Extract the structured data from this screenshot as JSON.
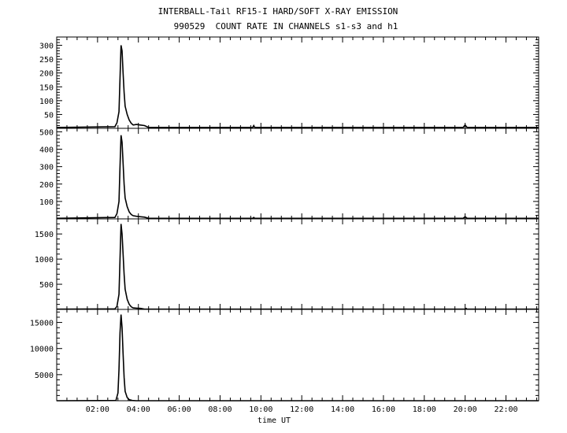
{
  "header": {
    "title": "INTERBALL-Tail RF15-I HARD/SOFT X-RAY EMISSION",
    "subtitle": "990529  COUNT RATE IN CHANNELS s1-s3 and h1"
  },
  "chart_data": {
    "type": "line",
    "xlabel": "time UT",
    "x_range_hours": [
      0,
      23.6
    ],
    "x_tick_labels": [
      "02:00",
      "04:00",
      "06:00",
      "08:00",
      "10:00",
      "12:00",
      "14:00",
      "16:00",
      "18:00",
      "20:00",
      "22:00"
    ],
    "x_tick_hours": [
      2,
      4,
      6,
      8,
      10,
      12,
      14,
      16,
      18,
      20,
      22
    ],
    "grid": false,
    "panels": [
      {
        "channel": "s1",
        "ylim": [
          0,
          330
        ],
        "y_ticks": [
          50,
          100,
          150,
          200,
          250,
          300
        ],
        "y_tick_labels": [
          "50",
          "100",
          "150",
          "200",
          "250",
          "300"
        ],
        "x": [
          0,
          2.85,
          2.95,
          3.05,
          3.1,
          3.15,
          3.2,
          3.25,
          3.3,
          3.35,
          3.45,
          3.55,
          3.65,
          3.75,
          3.9,
          4.1,
          4.3,
          4.5,
          9.6,
          9.65,
          9.7,
          19.9,
          20.0,
          20.1,
          23.6
        ],
        "y": [
          3,
          6,
          20,
          60,
          180,
          300,
          280,
          200,
          130,
          80,
          50,
          30,
          18,
          12,
          14,
          12,
          10,
          3,
          3,
          10,
          3,
          3,
          12,
          3,
          3
        ]
      },
      {
        "channel": "s2",
        "ylim": [
          0,
          520
        ],
        "y_ticks": [
          100,
          200,
          300,
          400,
          500
        ],
        "y_tick_labels": [
          "100",
          "200",
          "300",
          "400",
          "500"
        ],
        "x": [
          0,
          2.85,
          2.95,
          3.05,
          3.1,
          3.15,
          3.2,
          3.25,
          3.3,
          3.35,
          3.45,
          3.55,
          3.65,
          3.75,
          3.9,
          4.1,
          4.3,
          4.5,
          9.6,
          9.65,
          9.7,
          19.9,
          20.0,
          20.1,
          23.6
        ],
        "y": [
          3,
          8,
          30,
          100,
          300,
          480,
          440,
          320,
          200,
          120,
          70,
          40,
          25,
          18,
          15,
          12,
          10,
          3,
          3,
          8,
          3,
          3,
          12,
          3,
          3
        ]
      },
      {
        "channel": "s3",
        "ylim": [
          0,
          1800
        ],
        "y_ticks": [
          500,
          1000,
          1500
        ],
        "y_tick_labels": [
          "500",
          "1000",
          "1500"
        ],
        "x": [
          0,
          2.85,
          2.95,
          3.05,
          3.1,
          3.15,
          3.2,
          3.25,
          3.3,
          3.35,
          3.45,
          3.55,
          3.65,
          3.75,
          3.9,
          4.1,
          4.3,
          20.0,
          20.05,
          20.1,
          23.6
        ],
        "y": [
          5,
          10,
          60,
          300,
          1000,
          1700,
          1500,
          1100,
          700,
          400,
          200,
          100,
          50,
          30,
          25,
          20,
          5,
          5,
          20,
          5,
          5
        ]
      },
      {
        "channel": "h1",
        "ylim": [
          0,
          17500
        ],
        "y_ticks": [
          5000,
          10000,
          15000
        ],
        "y_tick_labels": [
          "5000",
          "10000",
          "15000"
        ],
        "x": [
          0,
          2.9,
          3.0,
          3.05,
          3.1,
          3.15,
          3.2,
          3.25,
          3.3,
          3.35,
          3.45,
          3.55,
          3.7,
          3.9,
          23.6
        ],
        "y": [
          0,
          50,
          1500,
          6000,
          13000,
          16500,
          14000,
          9000,
          4500,
          1800,
          600,
          200,
          50,
          0,
          0
        ]
      }
    ]
  }
}
